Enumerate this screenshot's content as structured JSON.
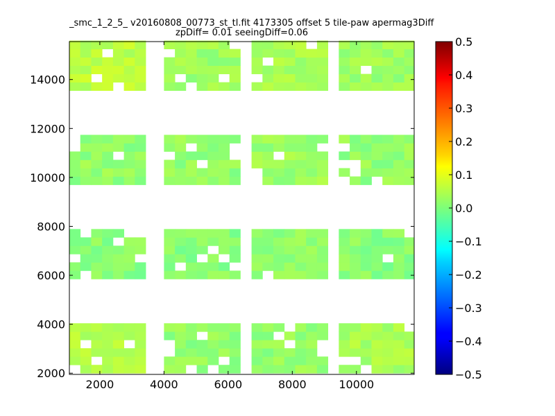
{
  "title_line1": "_smc_1_2_5_ v20160808_00773_st_tl.fit 4173305 offset 5 tile-paw apermag3Diff",
  "title_line2": "zpDiff= 0.01 seeingDiff=0.06",
  "chart_data": {
    "type": "heatmap",
    "title": "_smc_1_2_5_ v20160808_00773_st_tl.fit 4173305 offset 5 tile-paw apermag3Diff zpDiff= 0.01 seeingDiff=0.06",
    "xlabel": "",
    "ylabel": "",
    "xlim": [
      1050,
      11800
    ],
    "ylim": [
      1950,
      15550
    ],
    "x_ticks": [
      2000,
      4000,
      6000,
      8000,
      10000
    ],
    "y_ticks": [
      2000,
      4000,
      6000,
      8000,
      10000,
      12000,
      14000
    ],
    "colorbar": {
      "colormap": "jet",
      "min": -0.5,
      "max": 0.5,
      "ticks": [
        0.5,
        0.4,
        0.3,
        0.2,
        0.1,
        0.0,
        -0.1,
        -0.2,
        -0.3,
        -0.4,
        -0.5
      ],
      "tick_labels": [
        "0.5",
        "0.4",
        "0.3",
        "0.2",
        "0.1",
        "0.0",
        "−0.1",
        "−0.2",
        "−0.3",
        "−0.4",
        "−0.5"
      ]
    },
    "cell_size": 340,
    "grid": false,
    "x_columns": [
      1050,
      4000,
      6730,
      9450
    ],
    "y_rows": [
      2000,
      5850,
      9700,
      13550
    ],
    "block_width_cells": 7,
    "block_height_cells": 6,
    "block_values": [
      [
        0.05,
        0.02,
        0.02,
        0.04
      ],
      [
        0.01,
        0.01,
        0.02,
        0.01
      ],
      [
        0.02,
        0.02,
        0.03,
        0.02
      ],
      [
        0.06,
        0.03,
        0.04,
        0.03
      ]
    ]
  }
}
